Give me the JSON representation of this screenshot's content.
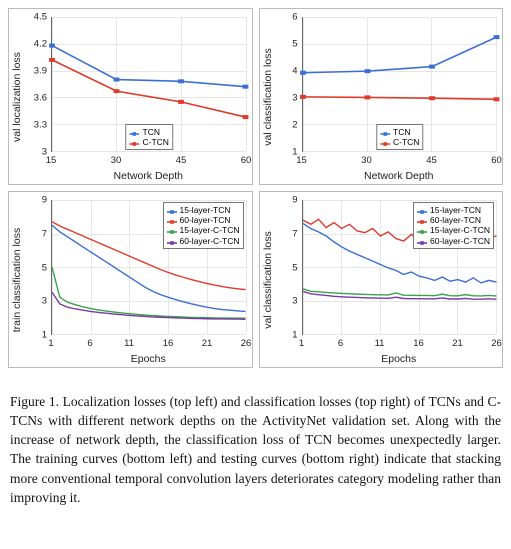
{
  "caption": "Figure 1. Localization losses (top left) and classification losses (top right) of TCNs and C-TCNs with different network depths on the ActivityNet validation set. Along with the increase of network depth, the classification loss of TCN becomes unexpectedly larger. The training curves (bottom left) and testing curves (bottom right) indicate that stacking more conventional temporal convolution layers deteriorates category modeling rather than improving it.",
  "charts": [
    {
      "id": "top-left",
      "type": "line",
      "xlabel": "Network Depth",
      "ylabel": "val localization loss",
      "xlim": [
        15,
        60
      ],
      "xticks": [
        15,
        30,
        45,
        60
      ],
      "ylim": [
        3,
        4.5
      ],
      "yticks": [
        3,
        3.3,
        3.6,
        3.9,
        4.2,
        4.5
      ],
      "background_color": "#ffffff",
      "grid_color": "#e6e6e6",
      "series": [
        {
          "name": "TCN",
          "color": "#3a6fd8",
          "marker": "square",
          "x": [
            15,
            30,
            45,
            60
          ],
          "y": [
            4.18,
            3.8,
            3.78,
            3.72
          ]
        },
        {
          "name": "C-TCN",
          "color": "#e03a2a",
          "marker": "square",
          "x": [
            15,
            30,
            45,
            60
          ],
          "y": [
            4.02,
            3.67,
            3.55,
            3.38
          ]
        }
      ],
      "legend": {
        "pos": "bottom-center",
        "items": [
          "TCN",
          "C-TCN"
        ]
      },
      "label_fontsize": 10.5,
      "tick_fontsize": 9.5,
      "line_width": 1.6,
      "marker_size": 3
    },
    {
      "id": "top-right",
      "type": "line",
      "xlabel": "Network Depth",
      "ylabel": "val classification loss",
      "xlim": [
        15,
        60
      ],
      "xticks": [
        15,
        30,
        45,
        60
      ],
      "ylim": [
        1,
        6
      ],
      "yticks": [
        1,
        2,
        3,
        4,
        5,
        6
      ],
      "background_color": "#ffffff",
      "grid_color": "#e6e6e6",
      "series": [
        {
          "name": "TCN",
          "color": "#3a6fd8",
          "marker": "square",
          "x": [
            15,
            30,
            45,
            60
          ],
          "y": [
            3.92,
            3.98,
            4.15,
            5.25
          ]
        },
        {
          "name": "C-TCN",
          "color": "#e03a2a",
          "marker": "square",
          "x": [
            15,
            30,
            45,
            60
          ],
          "y": [
            3.02,
            3.0,
            2.97,
            2.93
          ]
        }
      ],
      "legend": {
        "pos": "bottom-center",
        "items": [
          "TCN",
          "C-TCN"
        ]
      },
      "label_fontsize": 10.5,
      "tick_fontsize": 9.5,
      "line_width": 1.6,
      "marker_size": 3
    },
    {
      "id": "bottom-left",
      "type": "line",
      "xlabel": "Epochs",
      "ylabel": "train classification loss",
      "xlim": [
        1,
        26
      ],
      "xticks": [
        1,
        6,
        11,
        16,
        21,
        26
      ],
      "ylim": [
        1,
        9
      ],
      "yticks": [
        1,
        3,
        5,
        7,
        9
      ],
      "background_color": "#ffffff",
      "grid_color": "#e6e6e6",
      "series": [
        {
          "name": "15-layer-TCN",
          "color": "#3a6fd8",
          "x": [
            1,
            2,
            3,
            4,
            5,
            6,
            7,
            8,
            9,
            10,
            11,
            12,
            13,
            14,
            15,
            16,
            17,
            18,
            19,
            20,
            21,
            22,
            23,
            24,
            25,
            26
          ],
          "y": [
            7.5,
            7.1,
            6.8,
            6.5,
            6.2,
            5.9,
            5.6,
            5.3,
            5.0,
            4.7,
            4.4,
            4.1,
            3.8,
            3.55,
            3.35,
            3.2,
            3.05,
            2.92,
            2.8,
            2.7,
            2.6,
            2.52,
            2.46,
            2.42,
            2.38,
            2.35
          ]
        },
        {
          "name": "60-layer-TCN",
          "color": "#e03a2a",
          "x": [
            1,
            2,
            3,
            4,
            5,
            6,
            7,
            8,
            9,
            10,
            11,
            12,
            13,
            14,
            15,
            16,
            17,
            18,
            19,
            20,
            21,
            22,
            23,
            24,
            25,
            26
          ],
          "y": [
            7.7,
            7.45,
            7.25,
            7.05,
            6.85,
            6.65,
            6.45,
            6.25,
            6.05,
            5.85,
            5.65,
            5.45,
            5.25,
            5.05,
            4.85,
            4.68,
            4.52,
            4.38,
            4.25,
            4.13,
            4.02,
            3.92,
            3.83,
            3.76,
            3.7,
            3.65
          ]
        },
        {
          "name": "15-layer-C-TCN",
          "color": "#3aa24a",
          "x": [
            1,
            2,
            3,
            4,
            5,
            6,
            7,
            8,
            9,
            10,
            11,
            12,
            13,
            14,
            15,
            16,
            17,
            18,
            19,
            20,
            21,
            22,
            23,
            24,
            25,
            26
          ],
          "y": [
            5.0,
            3.2,
            2.9,
            2.75,
            2.62,
            2.52,
            2.44,
            2.37,
            2.31,
            2.26,
            2.21,
            2.17,
            2.13,
            2.1,
            2.07,
            2.05,
            2.03,
            2.01,
            1.99,
            1.98,
            1.97,
            1.96,
            1.95,
            1.95,
            1.94,
            1.94
          ]
        },
        {
          "name": "60-layer-C-TCN",
          "color": "#7a3aa8",
          "x": [
            1,
            2,
            3,
            4,
            5,
            6,
            7,
            8,
            9,
            10,
            11,
            12,
            13,
            14,
            15,
            16,
            17,
            18,
            19,
            20,
            21,
            22,
            23,
            24,
            25,
            26
          ],
          "y": [
            3.5,
            2.8,
            2.6,
            2.5,
            2.42,
            2.35,
            2.29,
            2.24,
            2.19,
            2.15,
            2.11,
            2.08,
            2.05,
            2.02,
            2.0,
            1.98,
            1.96,
            1.95,
            1.93,
            1.92,
            1.91,
            1.9,
            1.9,
            1.89,
            1.89,
            1.88
          ]
        }
      ],
      "legend": {
        "pos": "top-right-inset",
        "items": [
          "15-layer-TCN",
          "60-layer-TCN",
          "15-layer-C-TCN",
          "60-layer-C-TCN"
        ]
      },
      "label_fontsize": 10.5,
      "tick_fontsize": 9.5,
      "line_width": 1.4
    },
    {
      "id": "bottom-right",
      "type": "line",
      "xlabel": "Epochs",
      "ylabel": "val classification loss",
      "xlim": [
        1,
        26
      ],
      "xticks": [
        1,
        6,
        11,
        16,
        21,
        26
      ],
      "ylim": [
        1,
        9
      ],
      "yticks": [
        1,
        3,
        5,
        7,
        9
      ],
      "background_color": "#ffffff",
      "grid_color": "#e6e6e6",
      "series": [
        {
          "name": "15-layer-TCN",
          "color": "#3a6fd8",
          "x": [
            1,
            2,
            3,
            4,
            5,
            6,
            7,
            8,
            9,
            10,
            11,
            12,
            13,
            14,
            15,
            16,
            17,
            18,
            19,
            20,
            21,
            22,
            23,
            24,
            25,
            26
          ],
          "y": [
            7.6,
            7.3,
            7.1,
            6.85,
            6.5,
            6.2,
            5.95,
            5.75,
            5.55,
            5.35,
            5.15,
            4.95,
            4.8,
            4.55,
            4.7,
            4.45,
            4.35,
            4.2,
            4.4,
            4.15,
            4.25,
            4.1,
            4.35,
            4.05,
            4.2,
            4.1
          ]
        },
        {
          "name": "60-layer-TCN",
          "color": "#e03a2a",
          "x": [
            1,
            2,
            3,
            4,
            5,
            6,
            7,
            8,
            9,
            10,
            11,
            12,
            13,
            14,
            15,
            16,
            17,
            18,
            19,
            20,
            21,
            22,
            23,
            24,
            25,
            26
          ],
          "y": [
            7.8,
            7.55,
            7.85,
            7.35,
            7.65,
            7.3,
            7.55,
            7.15,
            7.05,
            7.3,
            6.85,
            7.1,
            6.7,
            6.55,
            6.95,
            6.55,
            6.35,
            6.85,
            6.25,
            6.45,
            6.35,
            6.6,
            6.8,
            6.5,
            6.75,
            6.85
          ]
        },
        {
          "name": "15-layer-C-TCN",
          "color": "#3aa24a",
          "x": [
            1,
            2,
            3,
            4,
            5,
            6,
            7,
            8,
            9,
            10,
            11,
            12,
            13,
            14,
            15,
            16,
            17,
            18,
            19,
            20,
            21,
            22,
            23,
            24,
            25,
            26
          ],
          "y": [
            3.7,
            3.55,
            3.52,
            3.48,
            3.45,
            3.42,
            3.4,
            3.38,
            3.36,
            3.35,
            3.34,
            3.33,
            3.45,
            3.32,
            3.31,
            3.3,
            3.3,
            3.29,
            3.38,
            3.29,
            3.28,
            3.35,
            3.28,
            3.27,
            3.3,
            3.27
          ]
        },
        {
          "name": "60-layer-C-TCN",
          "color": "#7a3aa8",
          "x": [
            1,
            2,
            3,
            4,
            5,
            6,
            7,
            8,
            9,
            10,
            11,
            12,
            13,
            14,
            15,
            16,
            17,
            18,
            19,
            20,
            21,
            22,
            23,
            24,
            25,
            26
          ],
          "y": [
            3.55,
            3.4,
            3.35,
            3.3,
            3.25,
            3.22,
            3.2,
            3.18,
            3.16,
            3.15,
            3.14,
            3.13,
            3.2,
            3.12,
            3.11,
            3.11,
            3.1,
            3.1,
            3.15,
            3.09,
            3.09,
            3.12,
            3.08,
            3.08,
            3.1,
            3.08
          ]
        }
      ],
      "legend": {
        "pos": "top-right-inset",
        "items": [
          "15-layer-TCN",
          "60-layer-TCN",
          "15-layer-C-TCN",
          "60-layer-C-TCN"
        ]
      },
      "label_fontsize": 10.5,
      "tick_fontsize": 9.5,
      "line_width": 1.4
    }
  ]
}
